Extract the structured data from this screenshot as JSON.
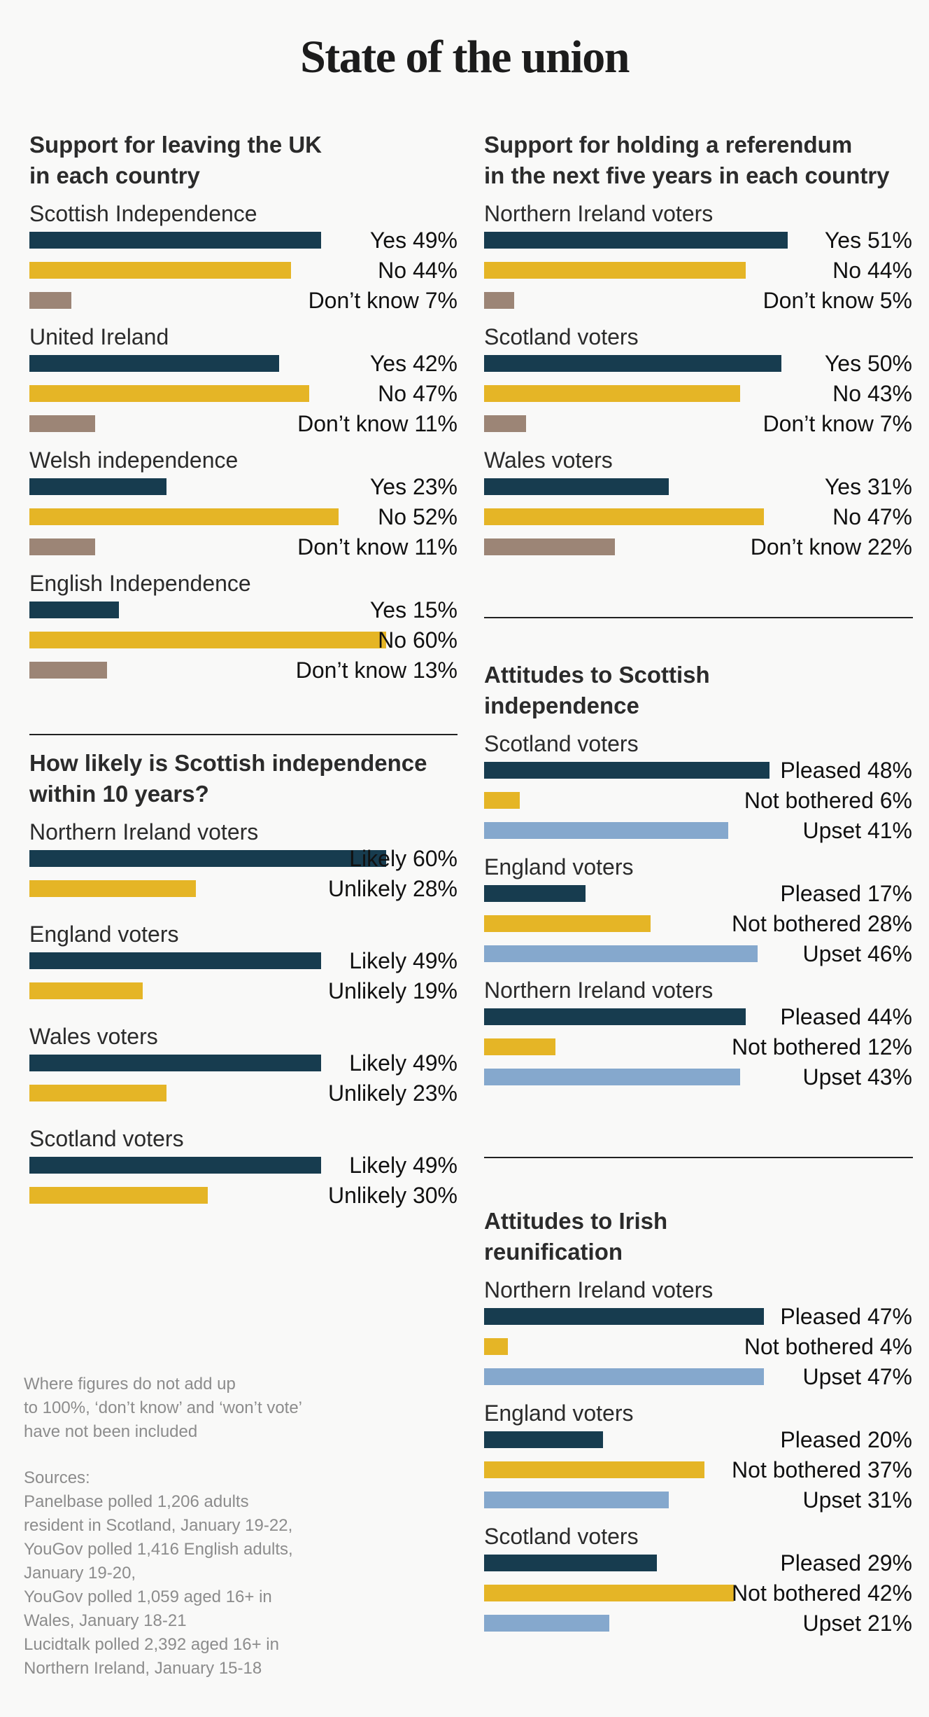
{
  "title": "State of the union",
  "colors": {
    "dark": "#173c4f",
    "yellow": "#e5b526",
    "taupe": "#9c8576",
    "blue": "#85a8cd",
    "rule": "#222222",
    "note": "#8c8c8c"
  },
  "chart_data": [
    {
      "id": "leaving-uk",
      "type": "bar",
      "orientation": "horizontal",
      "column": "left",
      "title_lines": [
        "Support for leaving the UK",
        "in each country"
      ],
      "max": 100,
      "groups": [
        {
          "label": "Scottish Independence",
          "items": [
            {
              "label": "Yes",
              "value": 49,
              "text": "Yes 49%",
              "color": "dark"
            },
            {
              "label": "No",
              "value": 44,
              "text": "No 44%",
              "color": "yellow"
            },
            {
              "label": "Don’t know",
              "value": 7,
              "text": "Don’t know 7%",
              "color": "taupe"
            }
          ]
        },
        {
          "label": "United Ireland",
          "items": [
            {
              "label": "Yes",
              "value": 42,
              "text": "Yes 42%",
              "color": "dark"
            },
            {
              "label": "No",
              "value": 47,
              "text": "No 47%",
              "color": "yellow"
            },
            {
              "label": "Don’t know",
              "value": 11,
              "text": "Don’t know 11%",
              "color": "taupe"
            }
          ]
        },
        {
          "label": "Welsh independence",
          "items": [
            {
              "label": "Yes",
              "value": 23,
              "text": "Yes 23%",
              "color": "dark"
            },
            {
              "label": "No",
              "value": 52,
              "text": "No 52%",
              "color": "yellow"
            },
            {
              "label": "Don’t know",
              "value": 11,
              "text": "Don’t know 11%",
              "color": "taupe"
            }
          ]
        },
        {
          "label": "English Independence",
          "items": [
            {
              "label": "Yes",
              "value": 15,
              "text": "Yes 15%",
              "color": "dark"
            },
            {
              "label": "No",
              "value": 60,
              "text": "No 60%",
              "color": "yellow"
            },
            {
              "label": "Don’t know",
              "value": 13,
              "text": "Don’t know 13%",
              "color": "taupe"
            }
          ]
        }
      ]
    },
    {
      "id": "likely-indy",
      "type": "bar",
      "orientation": "horizontal",
      "column": "left",
      "title_lines": [
        "How likely is Scottish independence",
        "within 10 years?"
      ],
      "max": 100,
      "groups": [
        {
          "label": "Northern Ireland voters",
          "items": [
            {
              "label": "Likely",
              "value": 60,
              "text": "Likely 60%",
              "color": "dark"
            },
            {
              "label": "Unlikely",
              "value": 28,
              "text": "Unlikely 28%",
              "color": "yellow"
            }
          ]
        },
        {
          "label": "England voters",
          "items": [
            {
              "label": "Likely",
              "value": 49,
              "text": "Likely 49%",
              "color": "dark"
            },
            {
              "label": "Unlikely",
              "value": 19,
              "text": "Unlikely 19%",
              "color": "yellow"
            }
          ]
        },
        {
          "label": "Wales voters",
          "items": [
            {
              "label": "Likely",
              "value": 49,
              "text": "Likely 49%",
              "color": "dark"
            },
            {
              "label": "Unlikely",
              "value": 23,
              "text": "Unlikely 23%",
              "color": "yellow"
            }
          ]
        },
        {
          "label": "Scotland voters",
          "items": [
            {
              "label": "Likely",
              "value": 49,
              "text": "Likely 49%",
              "color": "dark"
            },
            {
              "label": "Unlikely",
              "value": 30,
              "text": "Unlikely 30%",
              "color": "yellow"
            }
          ]
        }
      ]
    },
    {
      "id": "referendum",
      "type": "bar",
      "orientation": "horizontal",
      "column": "right",
      "title_lines": [
        "Support for holding a referendum",
        "in the next five years in each country"
      ],
      "max": 100,
      "groups": [
        {
          "label": "Northern Ireland voters",
          "items": [
            {
              "label": "Yes",
              "value": 51,
              "text": "Yes 51%",
              "color": "dark"
            },
            {
              "label": "No",
              "value": 44,
              "text": "No 44%",
              "color": "yellow"
            },
            {
              "label": "Don’t know",
              "value": 5,
              "text": "Don’t know 5%",
              "color": "taupe"
            }
          ]
        },
        {
          "label": "Scotland voters",
          "items": [
            {
              "label": "Yes",
              "value": 50,
              "text": "Yes 50%",
              "color": "dark"
            },
            {
              "label": "No",
              "value": 43,
              "text": "No 43%",
              "color": "yellow"
            },
            {
              "label": "Don’t know",
              "value": 7,
              "text": "Don’t know 7%",
              "color": "taupe"
            }
          ]
        },
        {
          "label": "Wales voters",
          "items": [
            {
              "label": "Yes",
              "value": 31,
              "text": "Yes 31%",
              "color": "dark"
            },
            {
              "label": "No",
              "value": 47,
              "text": "No 47%",
              "color": "yellow"
            },
            {
              "label": "Don’t know",
              "value": 22,
              "text": "Don’t know 22%",
              "color": "taupe"
            }
          ]
        }
      ]
    },
    {
      "id": "attitudes-scottish",
      "type": "bar",
      "orientation": "horizontal",
      "column": "right",
      "title_lines": [
        "Attitudes to Scottish",
        "independence"
      ],
      "max": 100,
      "groups": [
        {
          "label": "Scotland voters",
          "items": [
            {
              "label": "Pleased",
              "value": 48,
              "text": "Pleased 48%",
              "color": "dark"
            },
            {
              "label": "Not bothered",
              "value": 6,
              "text": "Not bothered 6%",
              "color": "yellow"
            },
            {
              "label": "Upset",
              "value": 41,
              "text": "Upset 41%",
              "color": "blue"
            }
          ]
        },
        {
          "label": "England voters",
          "items": [
            {
              "label": "Pleased",
              "value": 17,
              "text": "Pleased 17%",
              "color": "dark"
            },
            {
              "label": "Not bothered",
              "value": 28,
              "text": "Not bothered 28%",
              "color": "yellow"
            },
            {
              "label": "Upset",
              "value": 46,
              "text": "Upset 46%",
              "color": "blue"
            }
          ]
        },
        {
          "label": "Northern Ireland voters",
          "items": [
            {
              "label": "Pleased",
              "value": 44,
              "text": "Pleased 44%",
              "color": "dark"
            },
            {
              "label": "Not bothered",
              "value": 12,
              "text": "Not bothered 12%",
              "color": "yellow"
            },
            {
              "label": "Upset",
              "value": 43,
              "text": "Upset 43%",
              "color": "blue"
            }
          ]
        }
      ]
    },
    {
      "id": "attitudes-irish",
      "type": "bar",
      "orientation": "horizontal",
      "column": "right",
      "title_lines": [
        "Attitudes to Irish",
        "reunification"
      ],
      "max": 100,
      "groups": [
        {
          "label": "Northern Ireland voters",
          "items": [
            {
              "label": "Pleased",
              "value": 47,
              "text": "Pleased 47%",
              "color": "dark"
            },
            {
              "label": "Not bothered",
              "value": 4,
              "text": "Not bothered 4%",
              "color": "yellow"
            },
            {
              "label": "Upset",
              "value": 47,
              "text": "Upset 47%",
              "color": "blue"
            }
          ]
        },
        {
          "label": "England voters",
          "items": [
            {
              "label": "Pleased",
              "value": 20,
              "text": "Pleased 20%",
              "color": "dark"
            },
            {
              "label": "Not bothered",
              "value": 37,
              "text": "Not bothered 37%",
              "color": "yellow"
            },
            {
              "label": "Upset",
              "value": 31,
              "text": "Upset 31%",
              "color": "blue"
            }
          ]
        },
        {
          "label": "Scotland voters",
          "items": [
            {
              "label": "Pleased",
              "value": 29,
              "text": "Pleased 29%",
              "color": "dark"
            },
            {
              "label": "Not bothered",
              "value": 42,
              "text": "Not bothered 42%",
              "color": "yellow"
            },
            {
              "label": "Upset",
              "value": 21,
              "text": "Upset 21%",
              "color": "blue"
            }
          ]
        }
      ]
    }
  ],
  "notes": {
    "disclaimer_lines": [
      "Where figures do not add up",
      "to 100%, ‘don’t know’ and ‘won’t vote’",
      "have not been included"
    ],
    "sources_lines": [
      "Sources:",
      "Panelbase polled 1,206 adults",
      "resident in Scotland, January 19-22,",
      "YouGov polled 1,416 English adults,",
      "January 19-20,",
      "YouGov polled 1,059 aged 16+ in",
      "Wales, January 18-21",
      "Lucidtalk polled 2,392 aged 16+ in",
      "Northern Ireland, January 15-18"
    ]
  }
}
